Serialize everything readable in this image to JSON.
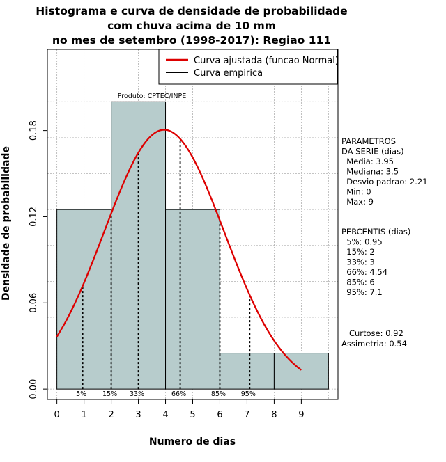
{
  "chart_data": {
    "type": "histogram",
    "title_lines": [
      "Histograma e curva de densidade de probabilidade",
      "com chuva acima de 10 mm",
      "no mes de setembro (1998-2017): Regiao 111"
    ],
    "xlabel": "Numero de dias",
    "ylabel": "Densidade de probabilidade",
    "xlim": [
      -0.35,
      10.35
    ],
    "ylim": [
      -0.0072,
      0.2365
    ],
    "x_ticks": [
      0,
      1,
      2,
      3,
      4,
      5,
      6,
      7,
      8,
      9
    ],
    "y_ticks": [
      0.0,
      0.06,
      0.12,
      0.18
    ],
    "y_tick_labels": [
      "0.00",
      "0.06",
      "0.12",
      "0.18"
    ],
    "grid": true,
    "bins": [
      {
        "x0": 0,
        "x1": 2,
        "density": 0.125
      },
      {
        "x0": 2,
        "x1": 4,
        "density": 0.2
      },
      {
        "x0": 4,
        "x1": 6,
        "density": 0.125
      },
      {
        "x0": 6,
        "x1": 8,
        "density": 0.025
      },
      {
        "x0": 8,
        "x1": 10,
        "density": 0.025
      }
    ],
    "bar_color": "#b7cccc",
    "normal_fit": {
      "mean": 3.95,
      "sd": 2.21,
      "x_from": 0,
      "x_to": 9,
      "color": "#dd0000"
    },
    "percentile_markers": [
      {
        "label": "5%",
        "x": 0.95
      },
      {
        "label": "15%",
        "x": 2
      },
      {
        "label": "33%",
        "x": 3
      },
      {
        "label": "66%",
        "x": 4.54
      },
      {
        "label": "85%",
        "x": 6
      },
      {
        "label": "95%",
        "x": 7.1
      }
    ],
    "legend": {
      "position": "top-right",
      "entries": [
        {
          "label": "Curva ajustada (funcao Normal)",
          "color": "#dd0000"
        },
        {
          "label": "Curva empirica",
          "color": "#000000"
        }
      ]
    },
    "annotation": "Produto: CPTEC/INPE",
    "side_panel": {
      "params_lines": [
        "PARAMETROS",
        "DA SERIE (dias)",
        "  Media: 3.95",
        "  Mediana: 3.5",
        "  Desvio padrao: 2.21",
        "  Min: 0",
        "  Max: 9"
      ],
      "percentis_lines": [
        "PERCENTIS (dias)",
        "  5%: 0.95",
        "  15%: 2",
        "  33%: 3",
        "  66%: 4.54",
        "  85%: 6",
        "  95%: 7.1"
      ],
      "stats_lines": [
        "   Curtose: 0.92",
        "Assimetria: 0.54"
      ]
    }
  }
}
